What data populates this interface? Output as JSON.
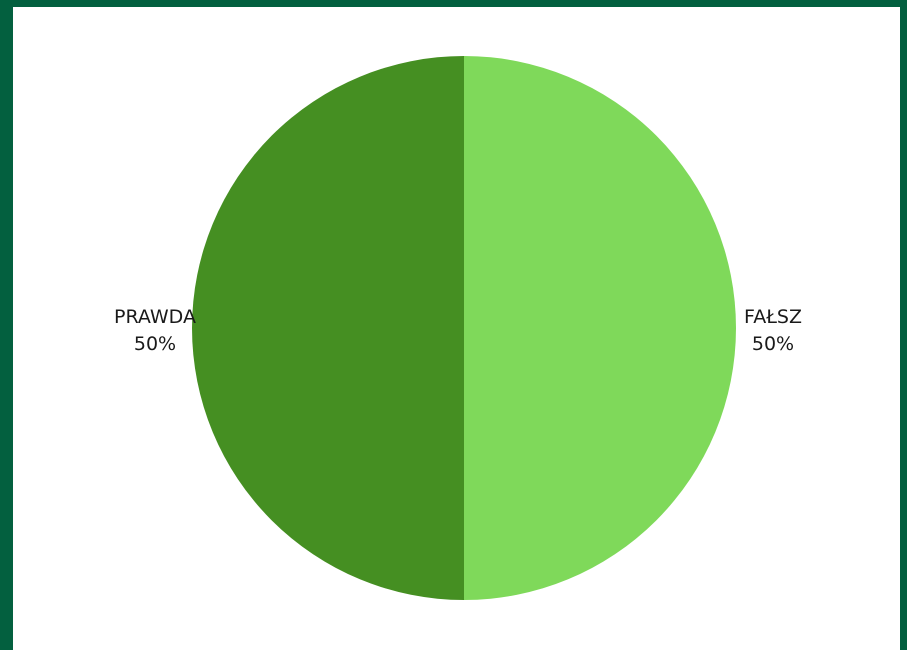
{
  "chart_data": {
    "type": "pie",
    "title": "",
    "start_angle_deg": 0,
    "direction": "clockwise",
    "slices": [
      {
        "label": "FAŁSZ",
        "value": 50,
        "percent_label": "50%",
        "color": "#7fd95a"
      },
      {
        "label": "PRAWDA",
        "value": 50,
        "percent_label": "50%",
        "color": "#458f22"
      }
    ]
  },
  "theme": {
    "frame_color": "#03603f",
    "background": "#ffffff"
  }
}
